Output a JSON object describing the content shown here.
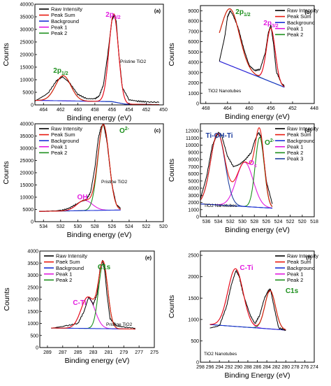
{
  "colors": {
    "raw": "#000000",
    "sum": "#e8190f",
    "background": "#1a2fd6",
    "peak1": "#e21ce0",
    "peak2": "#1c8f1c",
    "peak3": "#1f3f9f"
  },
  "chart_data": [
    {
      "type": "line",
      "panel": "(a)",
      "xlim": [
        450,
        465
      ],
      "ylim": [
        0,
        40000
      ],
      "x_reversed": true,
      "xticks": [
        "464",
        "462",
        "460",
        "458",
        "456",
        "454",
        "452",
        "450"
      ],
      "yticks": [
        "0",
        "5000",
        "10000",
        "15000",
        "20000",
        "25000",
        "30000",
        "35000",
        "40000"
      ],
      "ylabel": "Counts",
      "xlabel": "Binding energy (eV)",
      "legend": [
        "Raw Intensity",
        "Peak Sum",
        "Background",
        "Peak 1",
        "Peak 2"
      ],
      "annotations": [
        "2p1/2",
        "2p3/2",
        "Pristine TiO2"
      ],
      "series": [
        {
          "name": "Raw Intensity",
          "x": [
            465,
            463.5,
            462.5,
            461.8,
            461,
            460,
            459,
            458,
            457.5,
            457,
            456.5,
            456,
            455.7,
            455.5,
            455.2,
            454.8,
            454,
            453,
            452,
            450.5
          ],
          "y": [
            1500,
            4500,
            9500,
            11200,
            9000,
            4200,
            2500,
            2400,
            3500,
            8000,
            20000,
            34000,
            35800,
            33000,
            20000,
            7000,
            2000,
            1500,
            1200,
            1000
          ]
        },
        {
          "name": "Background",
          "x": [
            465,
            462,
            459,
            456,
            455,
            453,
            450.5
          ],
          "y": [
            1800,
            1500,
            1400,
            1000,
            400,
            300,
            300
          ]
        },
        {
          "name": "Peak 2",
          "x": [
            463.5,
            462.5,
            461.8,
            461,
            460,
            459
          ],
          "y": [
            3000,
            9000,
            11000,
            8800,
            3200,
            1300
          ]
        }
      ]
    },
    {
      "type": "line",
      "panel": "(b)",
      "xlim": [
        448,
        469
      ],
      "ylim": [
        0,
        9500
      ],
      "x_reversed": true,
      "xticks": [
        "468",
        "464",
        "460",
        "456",
        "452",
        "448"
      ],
      "yticks": [
        "0",
        "1000",
        "2000",
        "3000",
        "4000",
        "5000",
        "6000",
        "7000",
        "8000",
        "9000"
      ],
      "ylabel": "Counts",
      "xlabel": "Binding energy (eV)",
      "legend": [
        "Raw Intensity",
        "Peak Sum",
        "Background",
        "Peak 1",
        "Peak 2"
      ],
      "annotations": [
        "2p1/2",
        "2p3/2",
        "TiO2 Nanotubes"
      ],
      "series": [
        {
          "name": "Raw Intensity",
          "x": [
            465.5,
            464.5,
            464,
            463.5,
            463,
            462,
            461,
            460,
            459,
            458,
            457,
            456.5,
            456,
            455.5,
            455,
            454,
            453.5
          ],
          "y": [
            4100,
            6500,
            8400,
            9000,
            8600,
            7300,
            5300,
            3700,
            3200,
            3300,
            5000,
            6800,
            7600,
            5700,
            3100,
            1900,
            1700
          ]
        },
        {
          "name": "Background",
          "x": [
            465.5,
            462,
            459,
            457,
            455,
            453.5
          ],
          "y": [
            4100,
            3900,
            2600,
            1900,
            1600,
            1500
          ]
        }
      ]
    },
    {
      "type": "line",
      "panel": "(c)",
      "xlim": [
        520,
        535
      ],
      "ylim": [
        0,
        40000
      ],
      "x_reversed": true,
      "xticks": [
        "534",
        "532",
        "530",
        "528",
        "526",
        "524",
        "522",
        "520"
      ],
      "yticks": [
        "0",
        "5000",
        "10000",
        "15000",
        "20000",
        "25000",
        "30000",
        "35000",
        "40000"
      ],
      "ylabel": "Counts",
      "xlabel": "Binding energy (eV)",
      "legend": [
        "Raw Intensity",
        "Peak Sum",
        "Background",
        "Peak 1",
        "Peak 2"
      ],
      "annotations": [
        "O2-",
        "OH",
        "Pristine TiO2"
      ],
      "series": [
        {
          "name": "Raw Intensity",
          "x": [
            534.5,
            532,
            531,
            530,
            529.5,
            529,
            528.5,
            528,
            527.6,
            527.3,
            527,
            526.6,
            526,
            525.5,
            525
          ],
          "y": [
            4200,
            4500,
            5500,
            7500,
            8500,
            9000,
            12000,
            22000,
            34000,
            38500,
            40000,
            33000,
            15000,
            7000,
            5500
          ]
        },
        {
          "name": "Background",
          "x": [
            534.5,
            530,
            527,
            525
          ],
          "y": [
            4200,
            4300,
            4600,
            4800
          ]
        }
      ]
    },
    {
      "type": "line",
      "panel": "(d)",
      "xlim": [
        518,
        537
      ],
      "ylim": [
        0,
        13000
      ],
      "x_reversed": true,
      "xticks": [
        "536",
        "534",
        "532",
        "530",
        "528",
        "526",
        "524",
        "522",
        "520",
        "518"
      ],
      "yticks": [
        "0",
        "1000",
        "2000",
        "3000",
        "4000",
        "5000",
        "6000",
        "7000",
        "8000",
        "9000",
        "10000",
        "11000",
        "12000"
      ],
      "ylabel": "Counts",
      "xlabel": "Binding energy (eV)",
      "legend": [
        "Raw Intensity",
        "Peak Sum",
        "Background",
        "Peak 1",
        "Peak 2",
        "Peak 3"
      ],
      "annotations": [
        "Ti-OH-Ti",
        "O2-",
        "Oc",
        "TiO2 Nanotubes"
      ],
      "series": [
        {
          "name": "Raw Intensity",
          "x": [
            537,
            536,
            535,
            534,
            533.5,
            532.5,
            531.5,
            530.5,
            529.5,
            528.5,
            528,
            527.3,
            526.8,
            526,
            525
          ],
          "y": [
            2500,
            5500,
            10000,
            11800,
            11500,
            8500,
            7000,
            7300,
            8000,
            9000,
            10500,
            11800,
            11000,
            5000,
            1800
          ]
        },
        {
          "name": "Background",
          "x": [
            537,
            532,
            528,
            525
          ],
          "y": [
            1800,
            1500,
            1300,
            1200
          ]
        }
      ]
    },
    {
      "type": "line",
      "panel": "(e)",
      "xlim": [
        275,
        290
      ],
      "ylim": [
        0,
        4000
      ],
      "x_reversed": true,
      "xticks": [
        "289",
        "287",
        "285",
        "283",
        "281",
        "279",
        "277",
        "275"
      ],
      "yticks": [
        "0",
        "500",
        "1000",
        "1500",
        "2000",
        "2500",
        "3000",
        "3500",
        "4000"
      ],
      "ylabel": "Counts",
      "xlabel": "Binding energy (eV)",
      "legend": [
        "Raw Intensity",
        "Paek Sum",
        "Background",
        "Peak 1",
        "Peak 2"
      ],
      "annotations": [
        "C1s",
        "C-Ti",
        "Pristine TiO2"
      ],
      "series": [
        {
          "name": "Raw Intensity",
          "x": [
            288.5,
            286.5,
            285,
            284.2,
            283.6,
            283,
            282.5,
            282.1,
            281.8,
            281.5,
            281.2,
            280.8,
            280,
            279,
            277.5
          ],
          "y": [
            800,
            900,
            1000,
            1500,
            2100,
            1800,
            2200,
            3300,
            3600,
            3200,
            2200,
            1200,
            900,
            850,
            800
          ]
        },
        {
          "name": "Background",
          "x": [
            288.5,
            283,
            279,
            277.5
          ],
          "y": [
            800,
            800,
            780,
            760
          ]
        }
      ]
    },
    {
      "type": "line",
      "panel": "(f)",
      "xlim": [
        274,
        298
      ],
      "ylim": [
        0,
        2600
      ],
      "x_reversed": true,
      "xticks": [
        "298",
        "296",
        "294",
        "292",
        "290",
        "288",
        "286",
        "284",
        "282",
        "280",
        "278",
        "276",
        "274"
      ],
      "yticks": [
        "0",
        "500",
        "1000",
        "1500",
        "2000",
        "2500"
      ],
      "ylabel": "Counts",
      "xlabel": "Binding Energy (eV)",
      "legend": [
        "Raw Intensity",
        "Peak Sum",
        "Background",
        "Peak 1",
        "Peak 2"
      ],
      "annotations": [
        "C-Ti",
        "C1s",
        "TiO2 Nanotubes"
      ],
      "series": [
        {
          "name": "Raw Intensity",
          "x": [
            296,
            294,
            292.5,
            291.5,
            290.5,
            289.8,
            289,
            287.5,
            286.5,
            285.5,
            284.5,
            283.8,
            283.2,
            282.5,
            281.5,
            280
          ],
          "y": [
            800,
            850,
            1300,
            1800,
            2150,
            2000,
            1600,
            1100,
            900,
            1100,
            1500,
            1650,
            1700,
            1300,
            800,
            750
          ]
        },
        {
          "name": "Background",
          "x": [
            296,
            290,
            284,
            280
          ],
          "y": [
            880,
            830,
            780,
            760
          ]
        }
      ]
    }
  ]
}
